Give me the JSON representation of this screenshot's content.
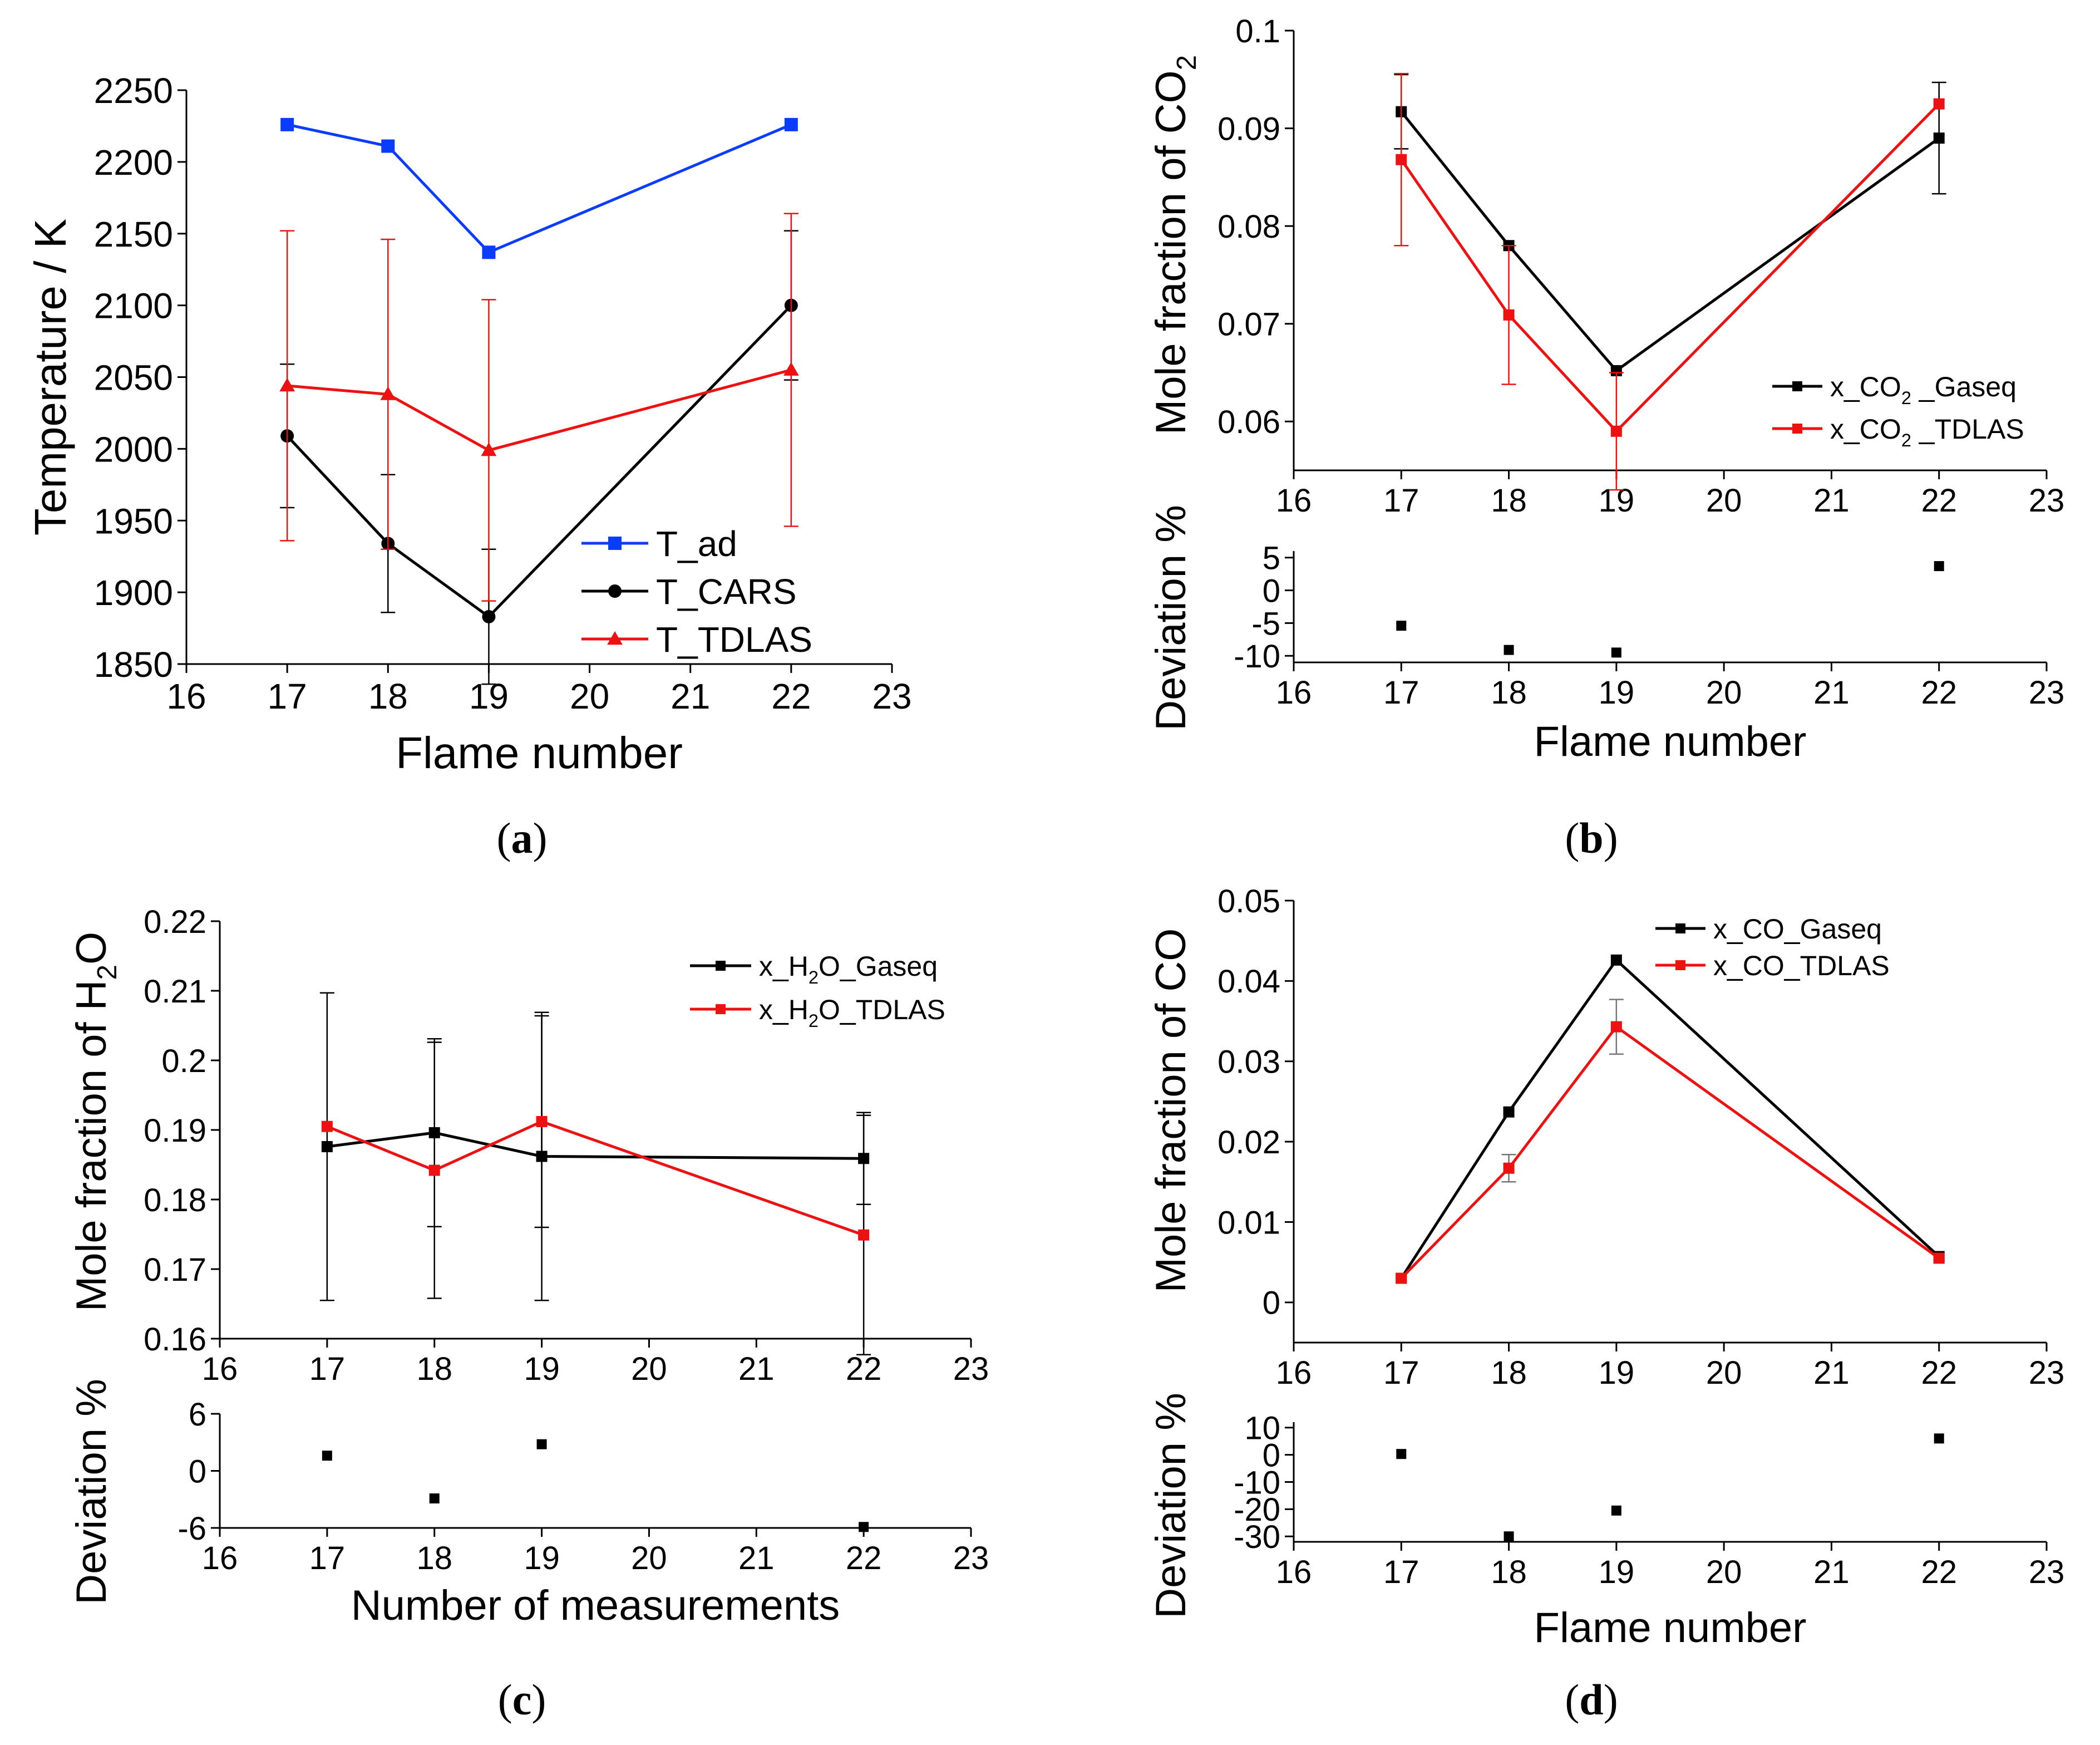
{
  "figure_labels": {
    "a": "a",
    "b": "b",
    "c": "c",
    "d": "d"
  },
  "chart_data": [
    {
      "id": "a",
      "type": "line",
      "xlabel": "Flame number",
      "ylabel": "Temperature / K",
      "xlim": [
        16,
        23
      ],
      "ylim": [
        1850,
        2250
      ],
      "xticks": [
        16,
        17,
        18,
        19,
        20,
        21,
        22,
        23
      ],
      "yticks": [
        1850,
        1900,
        1950,
        2000,
        2050,
        2100,
        2150,
        2200,
        2250
      ],
      "x": [
        17,
        18,
        19,
        22
      ],
      "legend_position": "bottom-right",
      "series": [
        {
          "name": "T_ad",
          "color": "#0a3cff",
          "marker": "square",
          "values": [
            2226,
            2211,
            2137,
            2226
          ]
        },
        {
          "name": "T_CARS",
          "color": "#000000",
          "marker": "circle",
          "values": [
            2009,
            1934,
            1883,
            2100
          ],
          "err": [
            50,
            48,
            47,
            52
          ]
        },
        {
          "name": "T_TDLAS",
          "color": "#ee1111",
          "marker": "triangle",
          "values": [
            2044,
            2038,
            1999,
            2055
          ],
          "err": [
            108,
            108,
            105,
            109
          ]
        }
      ]
    },
    {
      "id": "b",
      "type": "line",
      "xlabel": "Flame number",
      "ylabel_main": "Mole fraction of CO",
      "ylabel_sub": "2",
      "ylabel_dev": "Deviation %",
      "xlim": [
        16,
        23
      ],
      "ylim": [
        0.055,
        0.1
      ],
      "dev_ylim": [
        -11,
        6
      ],
      "xticks": [
        16,
        17,
        18,
        19,
        20,
        21,
        22,
        23
      ],
      "yticks": [
        "0.06",
        "0.07",
        "0.08",
        "0.09",
        "0.1"
      ],
      "dev_yticks": [
        "5",
        "0",
        "-5",
        "-10"
      ],
      "x": [
        17,
        18,
        19,
        22
      ],
      "legend_position": "center-right",
      "series": [
        {
          "name": "x_CO2 _Gaseq",
          "legend_pre": "x_CO",
          "legend_sub": "2",
          "legend_post": " _Gaseq",
          "color": "#000000",
          "marker": "square",
          "values": [
            0.0917,
            0.078,
            0.0652,
            0.089
          ],
          "err": [
            0.0038,
            0,
            0,
            0.0057
          ]
        },
        {
          "name": "x_CO2 _TDLAS",
          "legend_pre": "x_CO",
          "legend_sub": "2",
          "legend_post": " _TDLAS",
          "color": "#ee1111",
          "marker": "square",
          "values": [
            0.0868,
            0.0709,
            0.059,
            0.0925
          ],
          "err": [
            0.0088,
            0.0071,
            0.006,
            0
          ]
        }
      ],
      "deviation": [
        -5.4,
        -9.1,
        -9.5,
        3.7
      ]
    },
    {
      "id": "c",
      "type": "line",
      "xlabel": "Number of measurements",
      "ylabel_main": "Mole fraction of H",
      "ylabel_sub": "2",
      "ylabel_post": "O",
      "ylabel_dev": "Deviation %",
      "xlim": [
        16,
        23
      ],
      "ylim": [
        0.16,
        0.22
      ],
      "dev_ylim": [
        -6,
        6
      ],
      "xticks": [
        16,
        17,
        18,
        19,
        20,
        21,
        22,
        23
      ],
      "yticks": [
        "0.16",
        "0.17",
        "0.18",
        "0.19",
        "0.2",
        "0.21",
        "0.22"
      ],
      "dev_yticks": [
        "6",
        "0",
        "-6"
      ],
      "x": [
        17,
        18,
        19,
        22
      ],
      "legend_position": "top-right",
      "series": [
        {
          "name": "x_H2O_Gaseq",
          "legend_pre": "x_H",
          "legend_sub": "2",
          "legend_post": "O_Gaseq",
          "color": "#000000",
          "marker": "square",
          "values": [
            0.1876,
            0.1896,
            0.1862,
            0.1859
          ],
          "err": [
            0.0221,
            0.0135,
            0.0207,
            0.0066
          ]
        },
        {
          "name": "x_H2O_TDLAS",
          "legend_pre": "x_H",
          "legend_sub": "2",
          "legend_post": "O_TDLAS",
          "color": "#ee1111",
          "marker": "square",
          "values": [
            0.1905,
            0.1842,
            0.1912,
            0.1749
          ],
          "err": [
            0,
            0.0184,
            0.0152,
            0.0172
          ]
        }
      ],
      "deviation": [
        1.6,
        -2.9,
        2.8,
        -5.9
      ]
    },
    {
      "id": "d",
      "type": "line",
      "xlabel": "Flame number",
      "ylabel_main": "Mole fraction of CO",
      "ylabel_dev": "Deviation %",
      "xlim": [
        16,
        23
      ],
      "ylim": [
        -0.005,
        0.05
      ],
      "dev_ylim": [
        -32,
        12
      ],
      "xticks": [
        16,
        17,
        18,
        19,
        20,
        21,
        22,
        23
      ],
      "yticks": [
        "0",
        "0.01",
        "0.02",
        "0.03",
        "0.04",
        "0.05"
      ],
      "dev_yticks": [
        "10",
        "0",
        "-10",
        "-20",
        "-30"
      ],
      "x": [
        17,
        18,
        19,
        22
      ],
      "legend_position": "top-center",
      "series": [
        {
          "name": "x_CO_Gaseq",
          "legend_pre": "x_CO_Gaseq",
          "legend_sub": "",
          "legend_post": "",
          "color": "#000000",
          "marker": "square",
          "values": [
            0.003,
            0.0237,
            0.0426,
            0.0057
          ],
          "err": [
            0,
            0,
            0,
            0
          ]
        },
        {
          "name": "x_CO_TDLAS",
          "legend_pre": "x_CO_TDLAS",
          "legend_sub": "",
          "legend_post": "",
          "color": "#ee1111",
          "marker": "square",
          "values": [
            0.003,
            0.0167,
            0.0343,
            0.0055
          ],
          "err": [
            0,
            0.0017,
            0.0034,
            0
          ]
        }
      ],
      "deviation": [
        0.3,
        -30,
        -20.5,
        6
      ]
    }
  ]
}
